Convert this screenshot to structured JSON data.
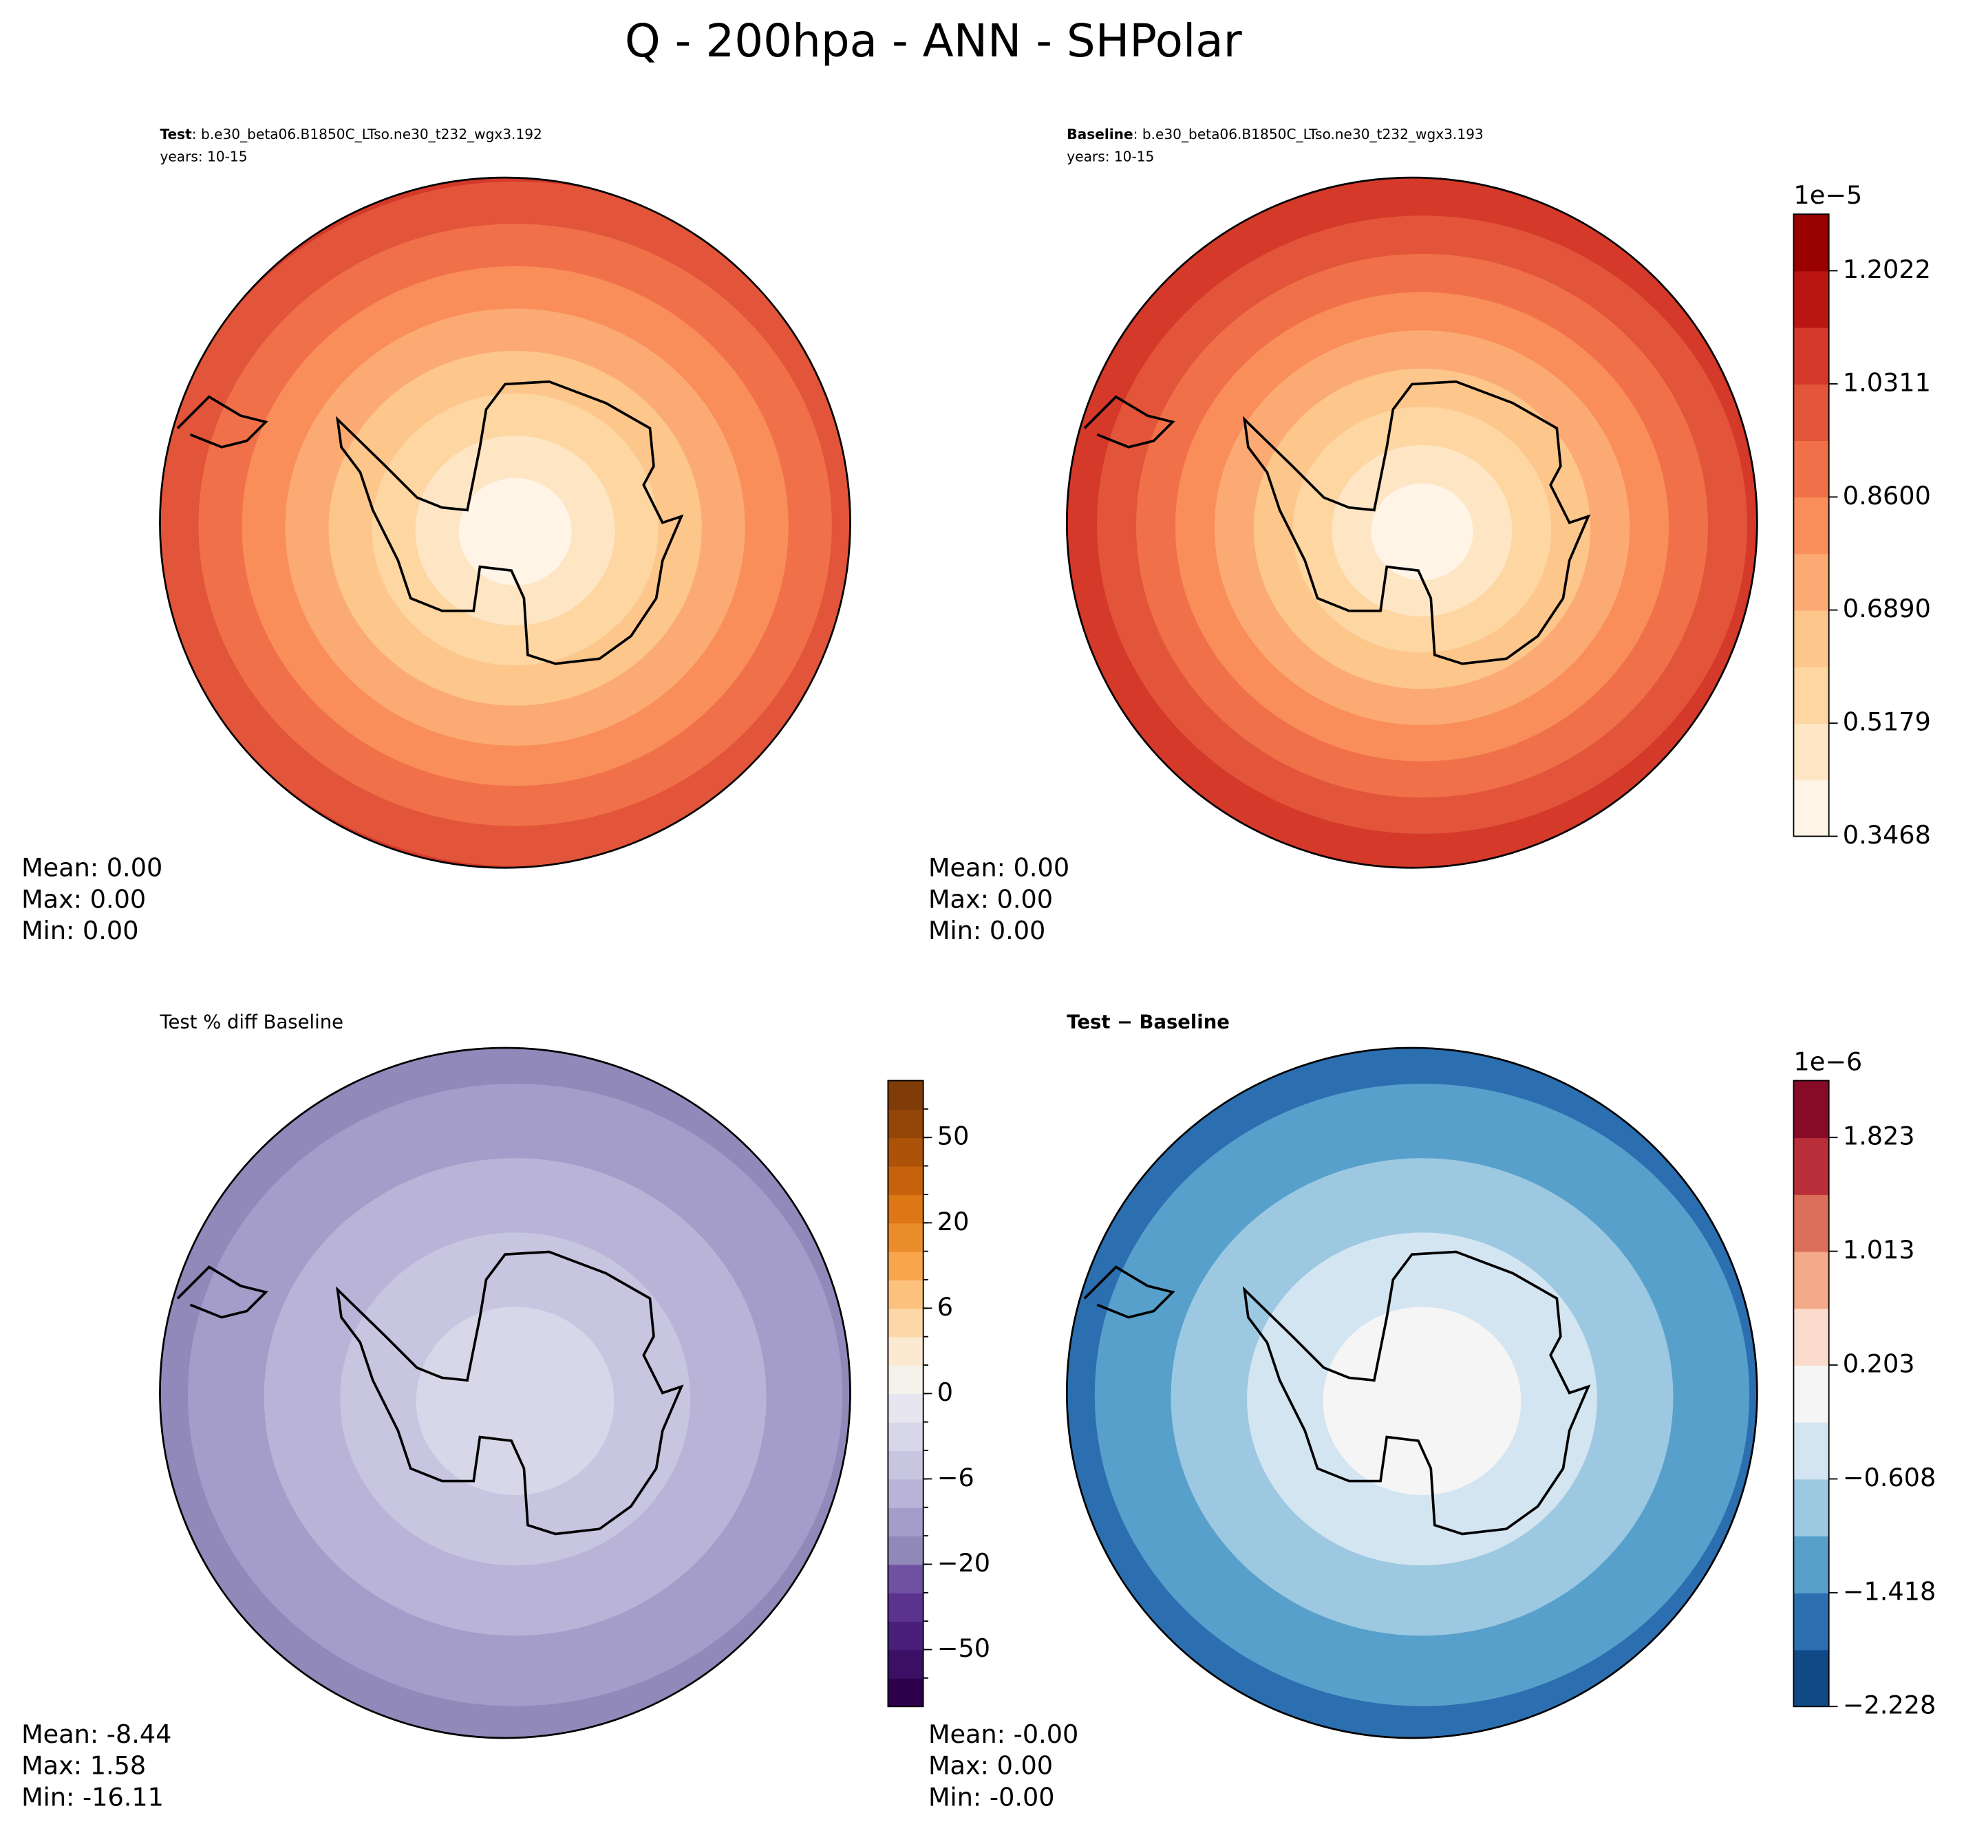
{
  "title": "Q - 200hpa - ANN - SHPolar",
  "panels": [
    {
      "label_bold": "Test",
      "label_text": ": b.e30_beta06.B1850C_LTso.ne30_t232_wgx3.192",
      "years": "years: 10-15",
      "stats": [
        "Mean:  0.00",
        "Max:  0.00",
        "Min:  0.00"
      ]
    },
    {
      "label_bold": "Baseline",
      "label_text": ": b.e30_beta06.B1850C_LTso.ne30_t232_wgx3.193",
      "years": "years: 10-15",
      "stats": [
        "Mean:  0.00",
        "Max:  0.00",
        "Min:  0.00"
      ]
    },
    {
      "label_text": "Test % diff Baseline",
      "stats": [
        "Mean: -8.44",
        "Max:  1.58",
        "Min: -16.11"
      ]
    },
    {
      "label_bold": "Test − Baseline",
      "stats": [
        "Mean: -0.00",
        "Max:  0.00",
        "Min: -0.00"
      ]
    }
  ],
  "colorbars": [
    {
      "offset_label": "1e−5",
      "ylim": [
        0.3468,
        1.2878
      ],
      "ticks": [
        0.3468,
        0.5179,
        {
          "value": 0.689,
          "label": "0.6890"
        },
        {
          "value": 0.86,
          "label": "0.8600"
        },
        1.0311,
        1.2022
      ],
      "colors": [
        "#fff4e6",
        "#fee6c5",
        "#fdd6a2",
        "#fdc68b",
        "#fcaa73",
        "#f98e5b",
        "#f07149",
        "#e2553a",
        "#d4392a",
        "#bb1511",
        "#990000"
      ]
    },
    {
      "ticks": [
        {
          "value": -50,
          "label": "−50"
        },
        {
          "value": -20,
          "label": "−20"
        },
        {
          "value": -6,
          "label": "−6"
        },
        0,
        6,
        20,
        50
      ],
      "colors": [
        "#2d004b",
        "#3b0f63",
        "#4a1f7a",
        "#5b338f",
        "#6e52a1",
        "#9189b9",
        "#a49cc9",
        "#b9b4d7",
        "#c8c5e1",
        "#d8d7ea",
        "#e6e5f0",
        "#f5f2ec",
        "#fbe9d2",
        "#fed7a8",
        "#fdc17e",
        "#f9a54c",
        "#ec8d2b",
        "#dc7713",
        "#c6620c",
        "#ad5309",
        "#944508",
        "#7f3b08"
      ]
    },
    {
      "offset_label": "1e−6",
      "ylim": [
        -2.228,
        2.228
      ],
      "ticks": [
        {
          "value": -2.228,
          "label": "−2.228"
        },
        {
          "value": -1.418,
          "label": "−1.418"
        },
        {
          "value": -0.608,
          "label": "−0.608"
        },
        0.203,
        1.013,
        1.823
      ],
      "colors": [
        "#0f4a86",
        "#2b6fb0",
        "#58a0cc",
        "#9cc9e1",
        "#d3e5f1",
        "#f5f5f5",
        "#fbdccc",
        "#f4a98a",
        "#dc6f5b",
        "#ba2e39",
        "#870b27"
      ]
    }
  ]
}
